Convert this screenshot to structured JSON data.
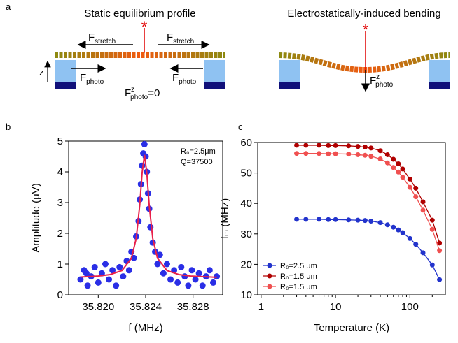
{
  "panel_labels": [
    "a",
    "b",
    "c"
  ],
  "diagram": {
    "left_title": "Static equilibrium profile",
    "right_title": "Electrostatically-induced bending",
    "axis": "z",
    "stretch": {
      "main": "F",
      "sub": "stretch"
    },
    "photo": {
      "main": "F",
      "sub": "photo"
    },
    "photo_z_zero": {
      "main": "F",
      "sup": "z",
      "sub": "photo",
      "suffix": "=0"
    },
    "photo_z": {
      "main": "F",
      "sup": "z",
      "sub": "photo"
    }
  },
  "chart_data": [
    {
      "type": "scatter",
      "xlabel": "f (MHz)",
      "ylabel": "Amplitude (μV)",
      "annotations": [
        "R₀=2.5μm",
        "Q=37500"
      ],
      "xlim": [
        35.8175,
        35.8305
      ],
      "ylim": [
        0,
        5
      ],
      "xticks": [
        {
          "value": 35.82,
          "label": "35.820"
        },
        {
          "value": 35.824,
          "label": "35.824"
        },
        {
          "value": 35.828,
          "label": "35.828"
        }
      ],
      "yticks": [
        0,
        1,
        2,
        3,
        4,
        5
      ],
      "color": "#2a2ee6",
      "x": [
        35.8185,
        35.8188,
        35.819,
        35.8191,
        35.8194,
        35.8197,
        35.82,
        35.8203,
        35.8206,
        35.8209,
        35.8212,
        35.8215,
        35.8218,
        35.8221,
        35.8224,
        35.8226,
        35.8228,
        35.823,
        35.8232,
        35.8234,
        35.8235,
        35.8236,
        35.8237,
        35.8238,
        35.8239,
        35.824,
        35.8241,
        35.8242,
        35.8243,
        35.8244,
        35.8246,
        35.8248,
        35.825,
        35.8252,
        35.8255,
        35.8258,
        35.8261,
        35.8264,
        35.8267,
        35.827,
        35.8273,
        35.8276,
        35.8279,
        35.8282,
        35.8285,
        35.8288,
        35.8291,
        35.8294,
        35.8297,
        35.83
      ],
      "values": [
        0.5,
        0.8,
        0.7,
        0.3,
        0.6,
        0.9,
        0.4,
        0.7,
        1.0,
        0.5,
        0.8,
        0.3,
        0.9,
        0.6,
        1.1,
        0.8,
        1.4,
        1.2,
        1.9,
        2.4,
        3.1,
        3.6,
        4.2,
        4.6,
        4.9,
        4.5,
        4.0,
        3.3,
        2.8,
        2.2,
        1.7,
        1.4,
        1.0,
        1.3,
        0.7,
        1.0,
        0.5,
        0.8,
        0.4,
        0.9,
        0.6,
        0.3,
        0.8,
        0.5,
        0.7,
        0.3,
        0.6,
        0.8,
        0.4,
        0.6
      ],
      "fit": {
        "color": "#e8204a",
        "x": [
          35.8185,
          35.82,
          35.821,
          35.822,
          35.8228,
          35.8232,
          35.8235,
          35.8237,
          35.8239,
          35.8241,
          35.8243,
          35.8246,
          35.825,
          35.8258,
          35.8268,
          35.8278,
          35.83
        ],
        "values": [
          0.58,
          0.61,
          0.66,
          0.79,
          1.19,
          1.83,
          2.91,
          3.96,
          4.55,
          3.96,
          2.91,
          1.83,
          1.19,
          0.79,
          0.66,
          0.61,
          0.57
        ]
      }
    },
    {
      "type": "line",
      "log_x": true,
      "xlabel": "Temperature (K)",
      "ylabel": "fₘ (MHz)",
      "xlim": [
        0.9,
        300
      ],
      "ylim": [
        10,
        60
      ],
      "xticks": [
        1,
        10,
        100
      ],
      "yticks": [
        10,
        20,
        30,
        40,
        50,
        60
      ],
      "legend": "lower left",
      "x": [
        3,
        4,
        6,
        8,
        10,
        15,
        20,
        25,
        30,
        40,
        50,
        60,
        70,
        80,
        100,
        120,
        150,
        200,
        250
      ],
      "series": [
        {
          "name": "R₀=2.5 μm",
          "color": "#2233cc",
          "values": [
            34.8,
            34.8,
            34.8,
            34.7,
            34.7,
            34.6,
            34.5,
            34.4,
            34.2,
            33.7,
            33.0,
            32.2,
            31.3,
            30.4,
            28.5,
            26.6,
            23.8,
            19.8,
            15.0
          ]
        },
        {
          "name": "R₀=1.5 μm",
          "color": "#b00000",
          "values": [
            59.1,
            59.1,
            59.1,
            59.0,
            59.0,
            58.9,
            58.7,
            58.5,
            58.2,
            57.3,
            56.0,
            54.5,
            53.0,
            51.3,
            48.0,
            45.0,
            40.5,
            34.5,
            27.0
          ]
        },
        {
          "name": "R₀=1.5 μm",
          "color": "#f05050",
          "values": [
            56.4,
            56.4,
            56.4,
            56.3,
            56.3,
            56.2,
            56.0,
            55.8,
            55.5,
            54.6,
            53.3,
            51.8,
            50.3,
            48.6,
            45.3,
            42.2,
            37.8,
            31.5,
            24.5
          ]
        }
      ]
    }
  ]
}
